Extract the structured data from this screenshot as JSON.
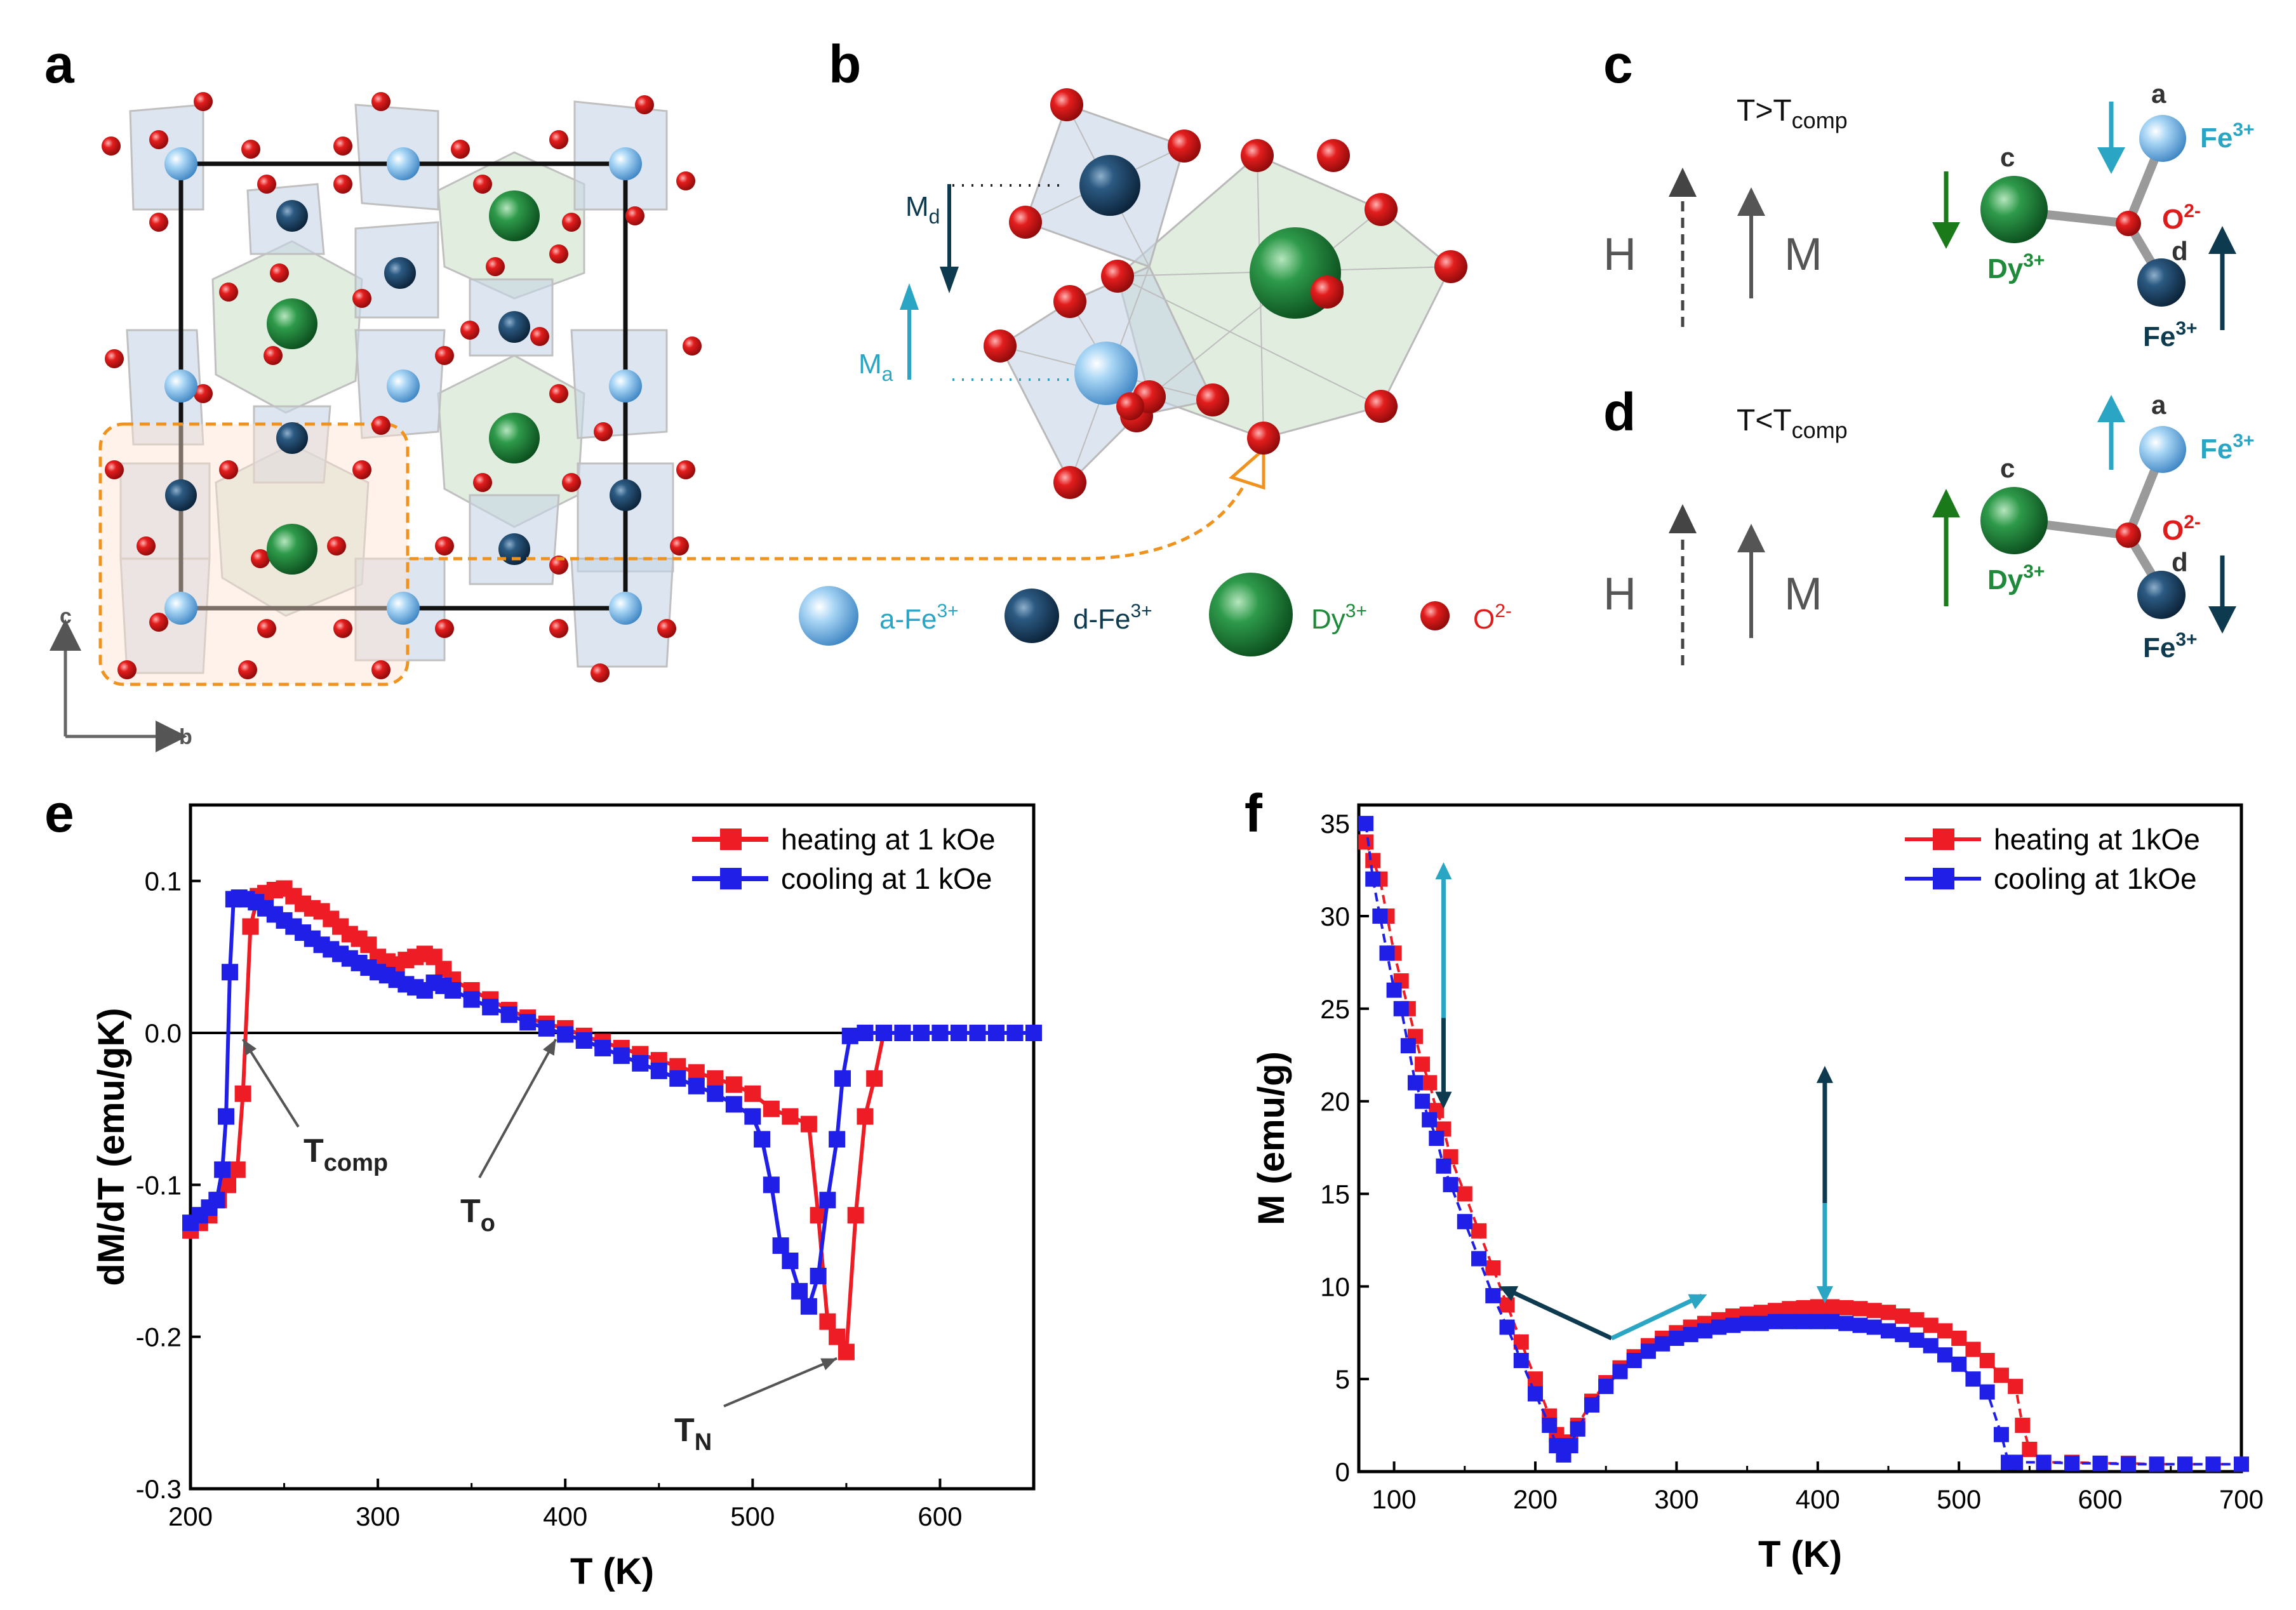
{
  "panels": {
    "a": "a",
    "b": "b",
    "c": "c",
    "d": "d",
    "e": "e",
    "f": "f"
  },
  "colors": {
    "heating": "#ee1c25",
    "cooling": "#1f1fe8",
    "a_fe": "#7fc0ee",
    "d_fe": "#1d3e63",
    "dy": "#1e8a3a",
    "oxygen": "#e01b1b",
    "cyan_arrow": "#2aa6c4",
    "dark_arrow": "#0e3a4f",
    "green_arrow": "#1a7a1a"
  },
  "panel_a": {
    "axis_c": "c",
    "axis_b": "b"
  },
  "panel_b": {
    "md_label": "M",
    "md_sub": "d",
    "ma_label": "M",
    "ma_sub": "a"
  },
  "legend_atoms": {
    "a_fe_label": "a-Fe",
    "a_fe_sup": "3+",
    "d_fe_label": "d-Fe",
    "d_fe_sup": "3+",
    "dy_label": "Dy",
    "dy_sup": "3+",
    "o_label": "O",
    "o_sup": "2-"
  },
  "panel_c": {
    "cond_main": "T>T",
    "cond_sub": "comp",
    "h": "H",
    "m": "M",
    "site_c": "c",
    "dy": "Dy",
    "dy_sup": "3+",
    "site_a": "a",
    "fe_a": "Fe",
    "fe_a_sup": "3+",
    "o": "O",
    "o_sup": "2-",
    "site_d": "d",
    "fe_d": "Fe",
    "fe_d_sup": "3+"
  },
  "panel_d": {
    "cond_main": "T<T",
    "cond_sub": "comp",
    "h": "H",
    "m": "M",
    "site_c": "c",
    "dy": "Dy",
    "dy_sup": "3+",
    "site_a": "a",
    "fe_a": "Fe",
    "fe_a_sup": "3+",
    "o": "O",
    "o_sup": "2-",
    "site_d": "d",
    "fe_d": "Fe",
    "fe_d_sup": "3+"
  },
  "chart_data": [
    {
      "id": "e",
      "type": "line",
      "xlabel": "T (K)",
      "ylabel": "dM/dT (emu/gK)",
      "xlim": [
        200,
        650
      ],
      "ylim": [
        -0.3,
        0.15
      ],
      "xticks": [
        "200",
        "300",
        "400",
        "500",
        "600"
      ],
      "yticks": [
        "-0.3",
        "-0.2",
        "-0.1",
        "0.0",
        "0.1"
      ],
      "legend": [
        "heating at 1 kOe",
        "cooling at 1 kOe"
      ],
      "legend_position": "top-right",
      "annotations": {
        "tcomp": "T",
        "tcomp_sub": "comp",
        "to": "T",
        "to_sub": "o",
        "tn": "T",
        "tn_sub": "N"
      },
      "series": [
        {
          "name": "heating at 1 kOe",
          "x": [
            200,
            205,
            210,
            215,
            220,
            225,
            228,
            232,
            236,
            240,
            245,
            250,
            255,
            260,
            265,
            270,
            275,
            280,
            285,
            290,
            295,
            300,
            305,
            310,
            315,
            320,
            325,
            330,
            335,
            340,
            350,
            360,
            370,
            380,
            390,
            400,
            410,
            420,
            430,
            440,
            450,
            460,
            470,
            480,
            490,
            500,
            510,
            520,
            530,
            535,
            540,
            545,
            550,
            555,
            560,
            565,
            570,
            580,
            590,
            600,
            610,
            620,
            630,
            640,
            650
          ],
          "y": [
            -0.13,
            -0.125,
            -0.12,
            -0.11,
            -0.1,
            -0.09,
            -0.04,
            0.07,
            0.09,
            0.092,
            0.094,
            0.095,
            0.09,
            0.085,
            0.082,
            0.08,
            0.075,
            0.07,
            0.065,
            0.062,
            0.058,
            0.05,
            0.047,
            0.045,
            0.048,
            0.05,
            0.052,
            0.05,
            0.042,
            0.035,
            0.028,
            0.022,
            0.015,
            0.01,
            0.006,
            0.003,
            -0.002,
            -0.006,
            -0.01,
            -0.014,
            -0.018,
            -0.022,
            -0.026,
            -0.03,
            -0.034,
            -0.04,
            -0.05,
            -0.055,
            -0.06,
            -0.12,
            -0.19,
            -0.2,
            -0.21,
            -0.12,
            -0.055,
            -0.03,
            0,
            0,
            0,
            0,
            0,
            0,
            0,
            0,
            0
          ]
        },
        {
          "name": "cooling at 1 kOe",
          "x": [
            200,
            205,
            210,
            214,
            217,
            219,
            221,
            223,
            226,
            230,
            235,
            240,
            245,
            250,
            255,
            260,
            265,
            270,
            275,
            280,
            285,
            290,
            295,
            300,
            305,
            310,
            315,
            320,
            325,
            330,
            335,
            340,
            350,
            360,
            370,
            380,
            390,
            400,
            410,
            420,
            430,
            440,
            450,
            460,
            470,
            480,
            490,
            500,
            505,
            510,
            515,
            520,
            525,
            530,
            535,
            540,
            545,
            548,
            552,
            560,
            570,
            580,
            590,
            600,
            610,
            620,
            630,
            640,
            650
          ],
          "y": [
            -0.125,
            -0.12,
            -0.115,
            -0.11,
            -0.09,
            -0.055,
            0.04,
            0.088,
            0.089,
            0.088,
            0.086,
            0.082,
            0.078,
            0.074,
            0.07,
            0.066,
            0.062,
            0.058,
            0.055,
            0.052,
            0.049,
            0.046,
            0.043,
            0.04,
            0.038,
            0.035,
            0.032,
            0.03,
            0.028,
            0.033,
            0.031,
            0.028,
            0.022,
            0.017,
            0.012,
            0.007,
            0.003,
            -0.001,
            -0.005,
            -0.01,
            -0.015,
            -0.02,
            -0.025,
            -0.03,
            -0.035,
            -0.04,
            -0.047,
            -0.055,
            -0.07,
            -0.1,
            -0.14,
            -0.15,
            -0.17,
            -0.18,
            -0.16,
            -0.11,
            -0.07,
            -0.03,
            -0.002,
            0,
            0,
            0,
            0,
            0,
            0,
            0,
            0,
            0,
            0
          ]
        }
      ]
    },
    {
      "id": "f",
      "type": "line",
      "xlabel": "T (K)",
      "ylabel": "M (emu/g)",
      "xlim": [
        75,
        700
      ],
      "ylim": [
        0,
        36
      ],
      "xticks": [
        "100",
        "200",
        "300",
        "400",
        "500",
        "600",
        "700"
      ],
      "yticks": [
        "0",
        "5",
        "10",
        "15",
        "20",
        "25",
        "30",
        "35"
      ],
      "legend": [
        "heating at 1kOe",
        "cooling at 1kOe"
      ],
      "legend_position": "top-right",
      "series": [
        {
          "name": "heating at 1kOe",
          "x": [
            80,
            85,
            90,
            95,
            100,
            105,
            110,
            115,
            120,
            125,
            130,
            135,
            140,
            150,
            160,
            170,
            180,
            190,
            200,
            210,
            215,
            220,
            225,
            230,
            240,
            250,
            260,
            270,
            280,
            290,
            300,
            310,
            320,
            330,
            340,
            350,
            360,
            370,
            380,
            390,
            400,
            410,
            420,
            430,
            440,
            450,
            460,
            470,
            480,
            490,
            500,
            510,
            520,
            530,
            540,
            545,
            550,
            560,
            580,
            600,
            620,
            640,
            660,
            680,
            700
          ],
          "y": [
            34,
            33,
            32,
            30,
            28,
            26.5,
            25,
            23.5,
            22,
            21,
            19.5,
            18.5,
            17,
            15,
            13,
            11,
            9,
            7,
            5,
            3,
            2,
            1,
            1.6,
            2.5,
            3.8,
            4.8,
            5.6,
            6.2,
            6.8,
            7.2,
            7.5,
            7.8,
            8.0,
            8.2,
            8.4,
            8.5,
            8.6,
            8.7,
            8.8,
            8.85,
            8.9,
            8.9,
            8.85,
            8.8,
            8.7,
            8.6,
            8.4,
            8.2,
            7.9,
            7.6,
            7.2,
            6.6,
            6.0,
            5.2,
            4.6,
            2.5,
            1.2,
            0.5,
            0.5,
            0.45,
            0.45,
            0.4,
            0.4,
            0.4,
            0.4
          ]
        },
        {
          "name": "cooling at 1kOe",
          "x": [
            80,
            85,
            90,
            95,
            100,
            105,
            110,
            115,
            120,
            125,
            130,
            135,
            140,
            150,
            160,
            170,
            180,
            190,
            200,
            210,
            215,
            220,
            225,
            230,
            240,
            250,
            260,
            270,
            280,
            290,
            300,
            310,
            320,
            330,
            340,
            350,
            360,
            370,
            380,
            390,
            400,
            410,
            420,
            430,
            440,
            450,
            460,
            470,
            480,
            490,
            500,
            510,
            520,
            530,
            535,
            540,
            560,
            580,
            600,
            620,
            640,
            660,
            680,
            700
          ],
          "y": [
            35,
            32,
            30,
            28,
            26,
            25,
            23,
            21,
            20,
            19,
            18,
            16.5,
            15.5,
            13.5,
            11.5,
            9.5,
            7.8,
            6,
            4.2,
            2.5,
            1.4,
            0.9,
            1.4,
            2.3,
            3.6,
            4.6,
            5.4,
            6,
            6.5,
            6.9,
            7.2,
            7.4,
            7.6,
            7.8,
            7.9,
            8.0,
            8.0,
            8.1,
            8.1,
            8.1,
            8.1,
            8.1,
            8.0,
            7.9,
            7.8,
            7.6,
            7.4,
            7.1,
            6.8,
            6.3,
            5.8,
            5.0,
            4.3,
            2.0,
            0.5,
            0.5,
            0.5,
            0.45,
            0.45,
            0.4,
            0.4,
            0.4,
            0.4,
            0.4
          ]
        }
      ]
    }
  ]
}
